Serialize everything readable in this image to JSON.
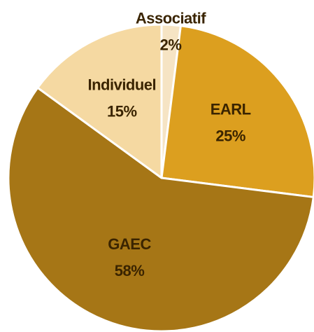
{
  "chart_data": {
    "type": "pie",
    "categories": [
      "Associatif",
      "EARL",
      "GAEC",
      "Individuel"
    ],
    "values": [
      2,
      25,
      58,
      15
    ],
    "value_labels": [
      "2%",
      "25%",
      "58%",
      "15%"
    ],
    "colors": [
      "#f6e4c4",
      "#dc9f1f",
      "#a67616",
      "#f5d9a2"
    ]
  }
}
